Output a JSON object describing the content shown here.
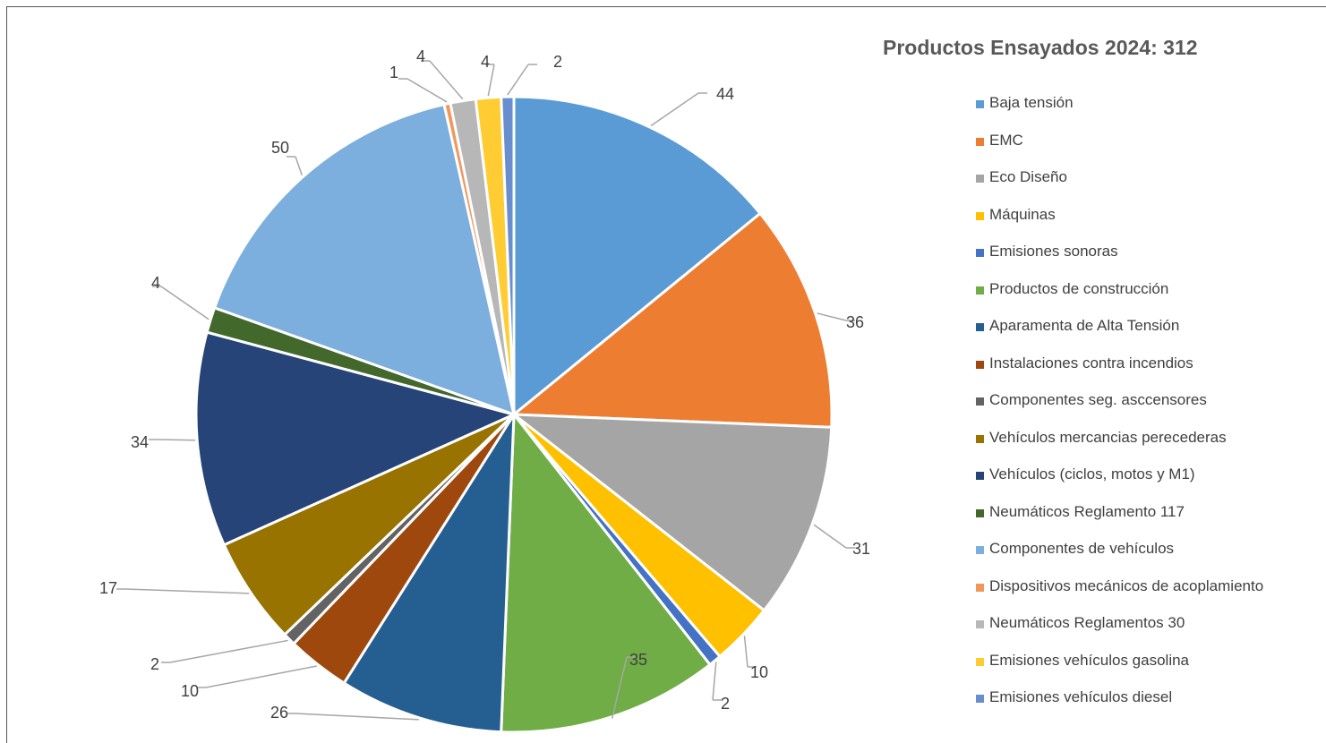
{
  "chart_data": {
    "type": "pie",
    "title": "Productos Ensayados 2024: 312",
    "legend_position": "right",
    "slices": [
      {
        "label": "Baja tensión",
        "value": 44,
        "color": "#5B9BD5"
      },
      {
        "label": "EMC",
        "value": 36,
        "color": "#ED7D31"
      },
      {
        "label": "Eco Diseño",
        "value": 31,
        "color": "#A5A5A5"
      },
      {
        "label": "Máquinas",
        "value": 10,
        "color": "#FFC000"
      },
      {
        "label": "Emisiones sonoras",
        "value": 2,
        "color": "#4472C4"
      },
      {
        "label": "Productos de construcción",
        "value": 35,
        "color": "#70AD47"
      },
      {
        "label": "Aparamenta de Alta Tensión",
        "value": 26,
        "color": "#255E91"
      },
      {
        "label": "Instalaciones contra incendios",
        "value": 10,
        "color": "#9E480E"
      },
      {
        "label": "Componentes seg. asccensores",
        "value": 2,
        "color": "#636363"
      },
      {
        "label": "Vehículos mercancias perecederas",
        "value": 17,
        "color": "#997300"
      },
      {
        "label": "Vehículos (ciclos, motos y M1)",
        "value": 34,
        "color": "#264478"
      },
      {
        "label": "Neumáticos Reglamento 117",
        "value": 4,
        "color": "#43682B"
      },
      {
        "label": "Componentes de vehículos",
        "value": 50,
        "color": "#7CAFDD"
      },
      {
        "label": "Dispositivos mecánicos de acoplamiento",
        "value": 1,
        "color": "#F1975A"
      },
      {
        "label": "Neumáticos Reglamentos 30",
        "value": 4,
        "color": "#B7B7B7"
      },
      {
        "label": "Emisiones vehículos gasolina",
        "value": 4,
        "color": "#FFCD33"
      },
      {
        "label": "Emisiones vehículos diesel",
        "value": 2,
        "color": "#698ED0"
      }
    ]
  }
}
